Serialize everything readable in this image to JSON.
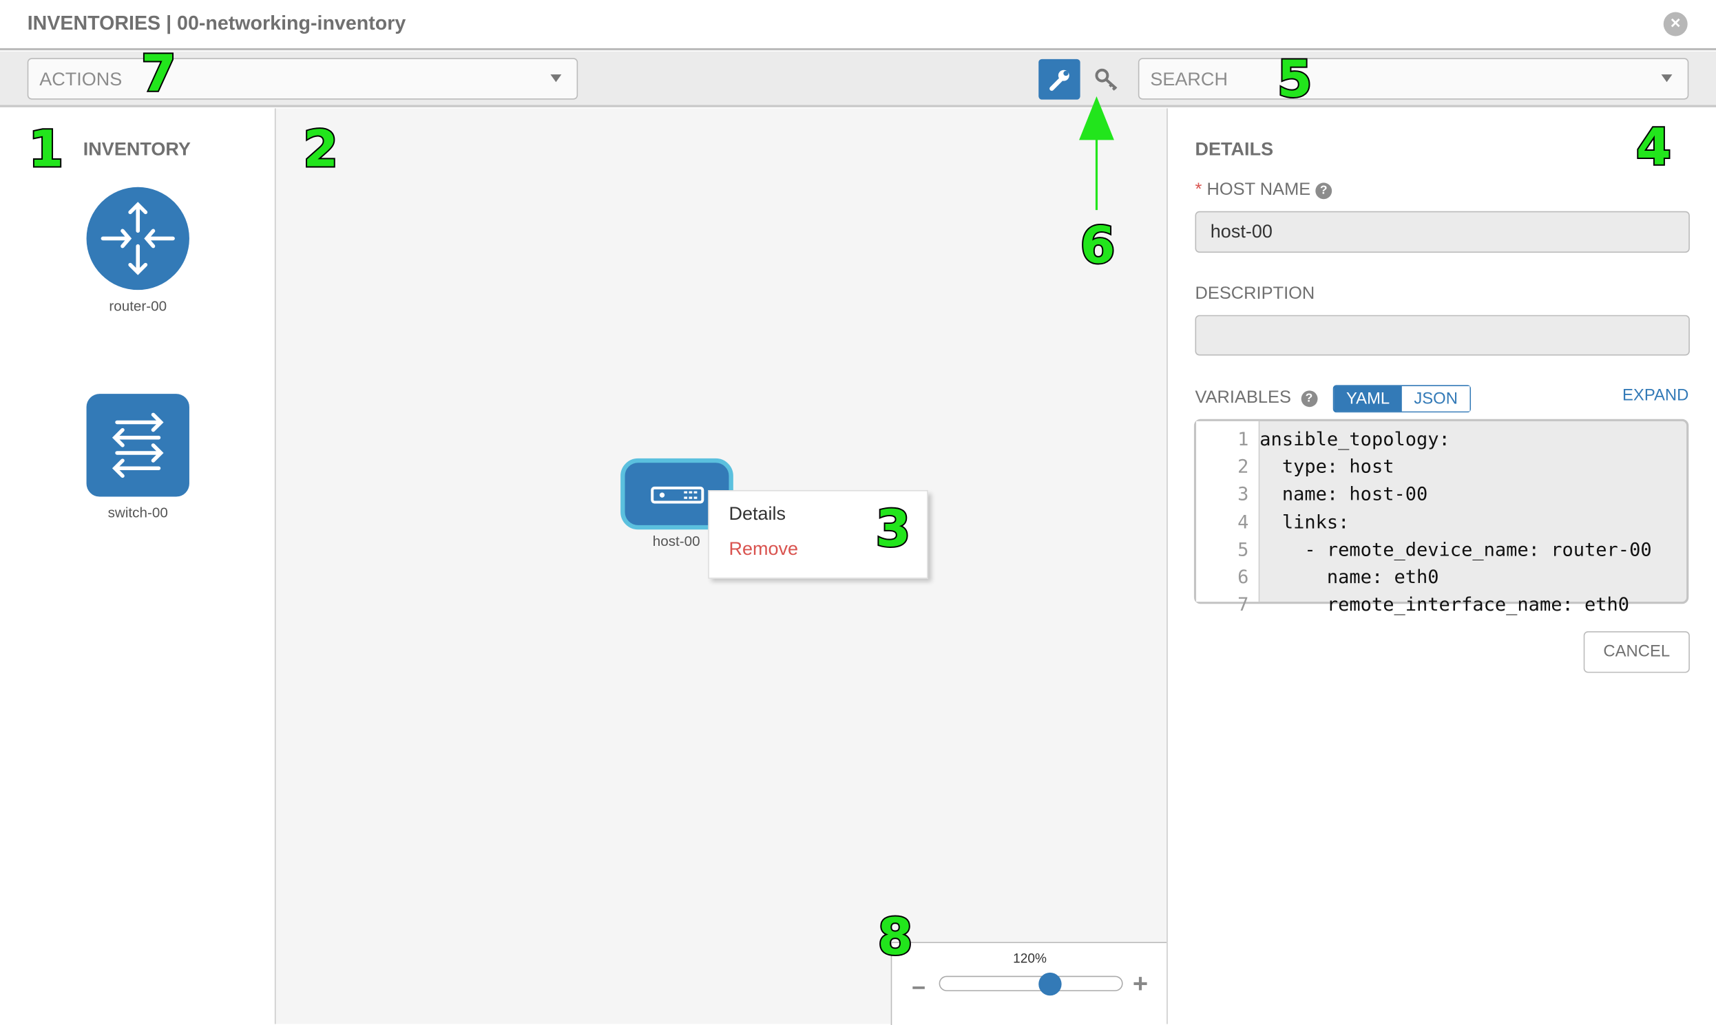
{
  "header": {
    "title": "INVENTORIES | 00-networking-inventory",
    "close_icon": "close-circle-icon"
  },
  "toolbar": {
    "actions_label": "ACTIONS",
    "search_placeholder": "SEARCH",
    "wrench_icon": "wrench-icon",
    "key_icon": "key-icon",
    "accent": "#337ab7"
  },
  "inventory": {
    "title": "INVENTORY",
    "items": [
      {
        "label": "router-00",
        "icon": "router-icon"
      },
      {
        "label": "switch-00",
        "icon": "switch-icon"
      }
    ]
  },
  "canvas": {
    "node": {
      "label": "host-00",
      "icon": "host-icon"
    },
    "context_menu": {
      "items": [
        "Details",
        "Remove"
      ]
    }
  },
  "details": {
    "title": "DETAILS",
    "host_name_label": "HOST NAME",
    "required_mark": "*",
    "host_name_value": "host-00",
    "description_label": "DESCRIPTION",
    "description_value": "",
    "variables_label": "VARIABLES",
    "toggle": [
      "YAML",
      "JSON"
    ],
    "toggle_selected": "YAML",
    "expand_label": "EXPAND",
    "code_lines": [
      "ansible_topology:",
      "  type: host",
      "  name: host-00",
      "  links:",
      "    - remote_device_name: router-00",
      "      name: eth0",
      "      remote_interface_name: eth0"
    ],
    "cancel_label": "CANCEL"
  },
  "zoom_control": {
    "value_label": "120%",
    "value_percent": 120,
    "slider_fraction": 0.6,
    "minus": "−",
    "plus": "+"
  },
  "annotations": [
    "1",
    "2",
    "3",
    "4",
    "5",
    "6",
    "7",
    "8"
  ]
}
